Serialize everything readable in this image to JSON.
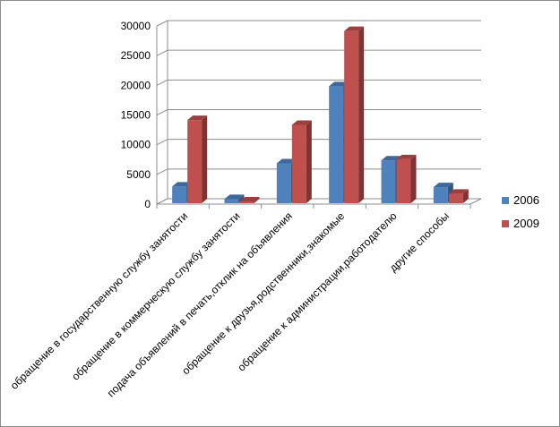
{
  "chart_data": {
    "type": "bar",
    "categories": [
      "обращение в государственную службу занятости",
      "обращение в коммерческую службу занятости",
      "подача объявлений в печать,отклик на объявления",
      "обращение к друзья,родственники,знакомые",
      "обращение к администрации,работодателю",
      "другие способы"
    ],
    "series": [
      {
        "name": "2006",
        "color": "#4f81bd",
        "values": [
          2800,
          700,
          6700,
          19700,
          7200,
          2700
        ]
      },
      {
        "name": "2009",
        "color": "#c0504d",
        "values": [
          14000,
          300,
          13200,
          29000,
          7400,
          1600
        ]
      }
    ],
    "yticks": [
      "0",
      "5000",
      "10000",
      "15000",
      "20000",
      "25000",
      "30000"
    ],
    "ylim": [
      0,
      30000
    ],
    "grid": true,
    "legend": "right",
    "style": "3d-clustered-column"
  }
}
